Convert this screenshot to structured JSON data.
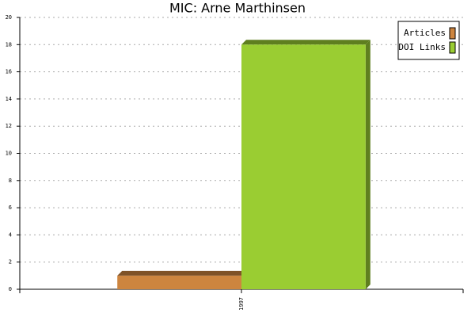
{
  "chart_data": {
    "type": "bar",
    "title": "MIC: Arne Marthinsen",
    "categories": [
      "1997"
    ],
    "series": [
      {
        "name": "Articles",
        "color": "#cd853f",
        "values": [
          1
        ]
      },
      {
        "name": "DOI Links",
        "color": "#9acd32",
        "values": [
          18
        ]
      }
    ],
    "ylim": [
      0,
      20
    ],
    "yticks": [
      0,
      2,
      4,
      6,
      8,
      10,
      12,
      14,
      16,
      18,
      20
    ],
    "grid": true,
    "legend": "upper right"
  }
}
